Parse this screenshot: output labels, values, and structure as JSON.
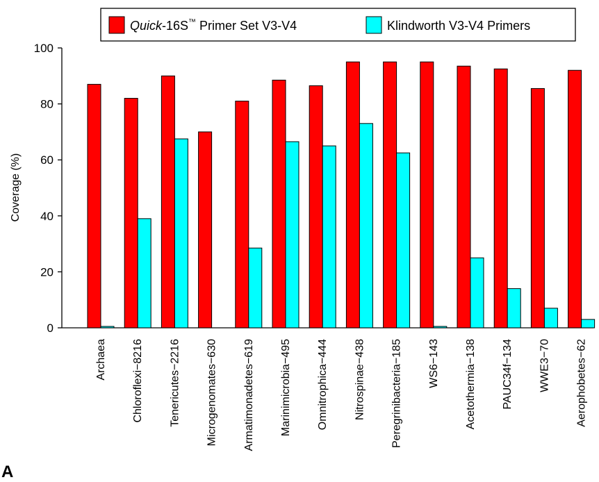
{
  "panel_label": "A",
  "chart_data": {
    "type": "bar",
    "title": "",
    "xlabel": "",
    "ylabel": "Coverage (%)",
    "ylim": [
      0,
      100
    ],
    "yticks": [
      "0",
      "20",
      "40",
      "60",
      "80",
      "100"
    ],
    "grid": false,
    "legend_position": "top",
    "categories": [
      "Archaea",
      "Chloroflexi−8216",
      "Tenericutes−2216",
      "Microgenomates−630",
      "Armatimonadetes−619",
      "Marinimicrobia−495",
      "Omnitrophica−444",
      "Nitrospinae−438",
      "Peregrinibacteria−185",
      "WS6−143",
      "Acetothermia−138",
      "PAUC34f−134",
      "WWE3−70",
      "Aerophobetes−62"
    ],
    "series": [
      {
        "name_italic": "Quick",
        "name_rest": "-16S",
        "name_tm": "™",
        "name_suffix": " Primer Set V3-V4",
        "color": "#ff0000",
        "values": [
          87,
          82,
          90,
          70,
          81,
          88.5,
          86.5,
          95,
          95,
          95,
          93.5,
          92.5,
          85.5,
          92
        ]
      },
      {
        "name": "Klindworth V3-V4 Primers",
        "color": "#00ffff",
        "values": [
          0.5,
          39,
          67.5,
          0,
          28.5,
          66.5,
          65,
          73,
          62.5,
          0.5,
          25,
          14,
          7,
          3
        ]
      }
    ]
  }
}
